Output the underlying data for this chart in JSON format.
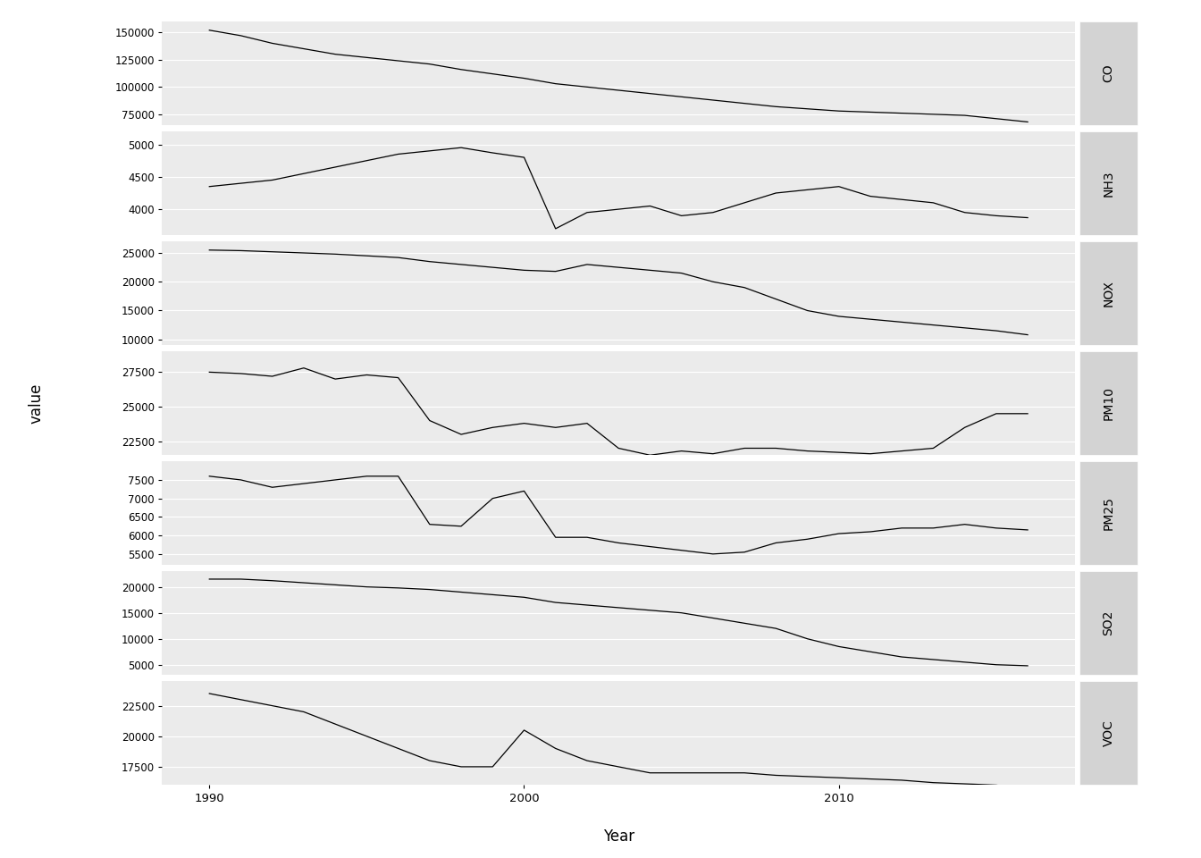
{
  "pollutants": [
    "CO",
    "NH3",
    "NOX",
    "PM10",
    "PM25",
    "SO2",
    "VOC"
  ],
  "years": [
    1990,
    1991,
    1992,
    1993,
    1994,
    1995,
    1996,
    1997,
    1998,
    1999,
    2000,
    2001,
    2002,
    2003,
    2004,
    2005,
    2006,
    2007,
    2008,
    2009,
    2010,
    2011,
    2012,
    2013,
    2014,
    2015,
    2016
  ],
  "data": {
    "CO": [
      152000,
      147000,
      140000,
      135000,
      130000,
      127000,
      124000,
      121000,
      116000,
      112000,
      108000,
      103000,
      100000,
      97000,
      94000,
      91000,
      88000,
      85000,
      82000,
      80000,
      78000,
      77000,
      76000,
      75000,
      74000,
      71000,
      68000
    ],
    "NH3": [
      4350,
      4400,
      4450,
      4550,
      4650,
      4750,
      4850,
      4900,
      4950,
      4870,
      4800,
      3700,
      3950,
      4000,
      4050,
      3900,
      3950,
      4100,
      4250,
      4300,
      4350,
      4200,
      4150,
      4100,
      3950,
      3900,
      3870
    ],
    "NOX": [
      25500,
      25400,
      25200,
      25000,
      24800,
      24500,
      24200,
      23500,
      23000,
      22500,
      22000,
      21800,
      23000,
      22500,
      22000,
      21500,
      20000,
      19000,
      17000,
      15000,
      14000,
      13500,
      13000,
      12500,
      12000,
      11500,
      10800
    ],
    "PM10": [
      27500,
      27400,
      27200,
      27800,
      27000,
      27300,
      27100,
      24000,
      23000,
      23500,
      23800,
      23500,
      23800,
      22000,
      21500,
      21800,
      21600,
      22000,
      22000,
      21800,
      21700,
      21600,
      21800,
      22000,
      23500,
      24500,
      24500
    ],
    "PM25": [
      7600,
      7500,
      7300,
      7400,
      7500,
      7600,
      7600,
      6300,
      6250,
      7000,
      7200,
      5950,
      5950,
      5800,
      5700,
      5600,
      5500,
      5550,
      5800,
      5900,
      6050,
      6100,
      6200,
      6200,
      6300,
      6200,
      6150
    ],
    "SO2": [
      21500,
      21500,
      21200,
      20800,
      20400,
      20000,
      19800,
      19500,
      19000,
      18500,
      18000,
      17000,
      16500,
      16000,
      15500,
      15000,
      14000,
      13000,
      12000,
      10000,
      8500,
      7500,
      6500,
      6000,
      5500,
      5000,
      4800
    ],
    "VOC": [
      23500,
      23000,
      22500,
      22000,
      21000,
      20000,
      19000,
      18000,
      17500,
      17500,
      20500,
      19000,
      18000,
      17500,
      17000,
      17000,
      17000,
      17000,
      16800,
      16700,
      16600,
      16500,
      16400,
      16200,
      16100,
      16000,
      15700
    ]
  },
  "yticks": {
    "CO": [
      75000,
      100000,
      125000,
      150000
    ],
    "NH3": [
      4000,
      4500,
      5000
    ],
    "NOX": [
      10000,
      15000,
      20000,
      25000
    ],
    "PM10": [
      22500,
      25000,
      27500
    ],
    "PM25": [
      5500,
      6000,
      6500,
      7000,
      7500
    ],
    "SO2": [
      5000,
      10000,
      15000,
      20000
    ],
    "VOC": [
      17500,
      20000,
      22500
    ]
  },
  "ylim": {
    "CO": [
      65000,
      160000
    ],
    "NH3": [
      3600,
      5200
    ],
    "NOX": [
      9000,
      27000
    ],
    "PM10": [
      21500,
      29000
    ],
    "PM25": [
      5200,
      8000
    ],
    "SO2": [
      3000,
      23000
    ],
    "VOC": [
      16000,
      24500
    ]
  },
  "background_color": "#EBEBEB",
  "panel_label_bg": "#D3D3D3",
  "line_color": "#000000",
  "label_fontsize": 10,
  "axis_label_fontsize": 12,
  "tick_fontsize": 8.5,
  "xlabel": "Year",
  "ylabel": "value",
  "xticks": [
    1990,
    2000,
    2010
  ],
  "xlim": [
    1988.5,
    2017.5
  ]
}
